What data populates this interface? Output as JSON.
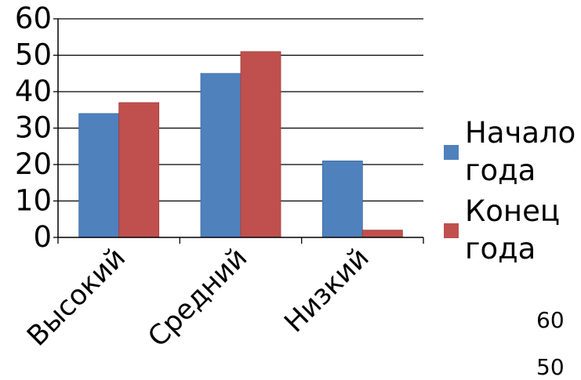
{
  "chart_data": {
    "type": "bar",
    "categories": [
      "Высокий",
      "Средний",
      "Низкий"
    ],
    "series": [
      {
        "name": "Начало года",
        "values": [
          34,
          45,
          21
        ]
      },
      {
        "name": "Конец года",
        "values": [
          37,
          51,
          2
        ]
      }
    ],
    "ylim": [
      0,
      60
    ],
    "yticks": [
      0,
      10,
      20,
      30,
      40,
      50,
      60
    ],
    "ytick_labels": [
      "0",
      "10",
      "20",
      "30",
      "40",
      "50",
      "60"
    ],
    "grid": true,
    "legend_position": "right",
    "colors": [
      "#4F81BD",
      "#C0504D"
    ]
  },
  "overlap_fragment": {
    "tick_a": "60",
    "tick_b": "50"
  }
}
